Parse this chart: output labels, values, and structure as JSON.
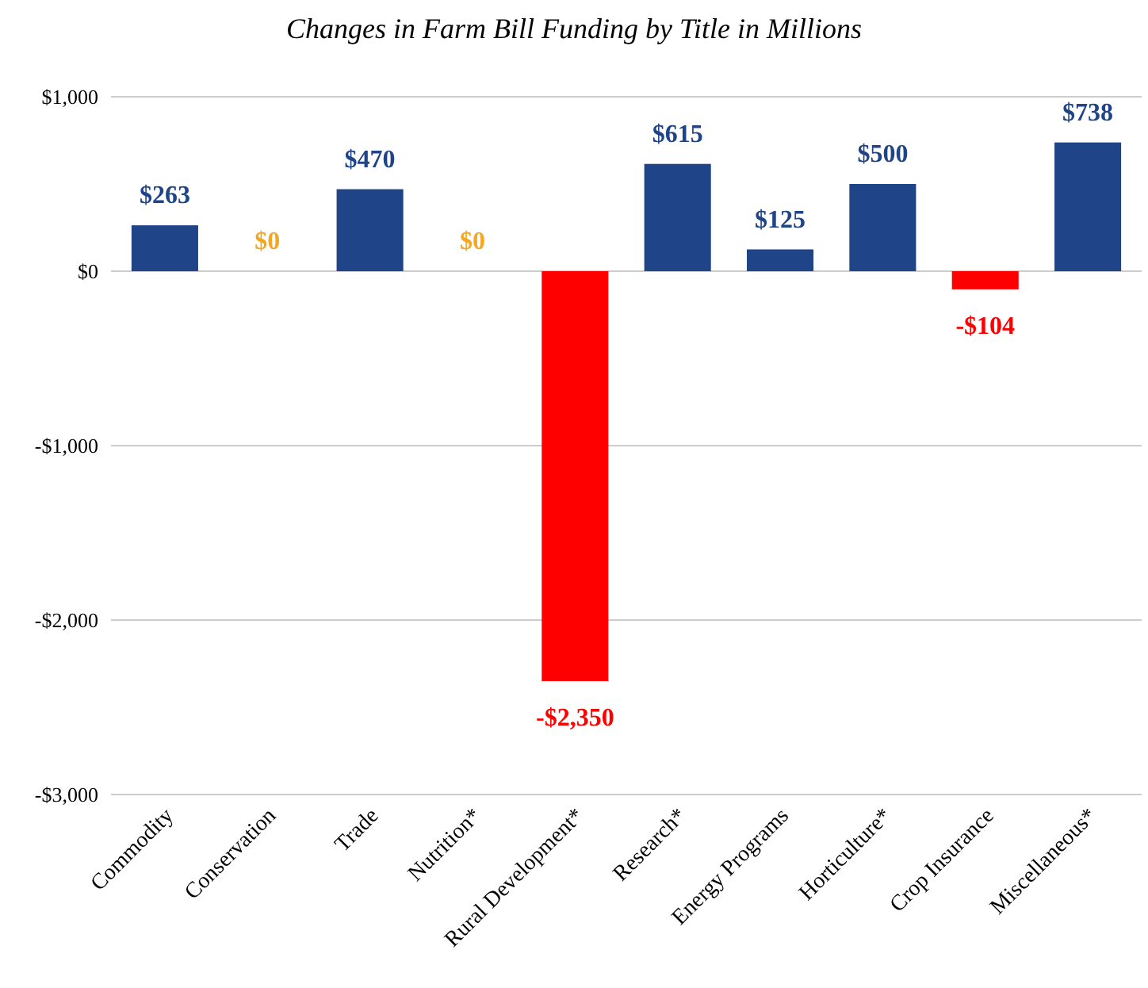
{
  "chart_data": {
    "type": "bar",
    "title": "Changes in Farm Bill Funding by Title in Millions",
    "categories": [
      "Commodity",
      "Conservation",
      "Trade",
      "Nutrition*",
      "Rural Development*",
      "Research*",
      "Energy Programs",
      "Horticulture*",
      "Crop Insurance",
      "Miscellaneous*"
    ],
    "values": [
      263,
      0,
      470,
      0,
      -2350,
      615,
      125,
      500,
      -104,
      738
    ],
    "colors": [
      "#1f4488",
      "#f5a623",
      "#1f4488",
      "#f5a623",
      "#ff0000",
      "#1f4488",
      "#1f4488",
      "#1f4488",
      "#ff0000",
      "#1f4488"
    ],
    "value_labels": [
      "$263",
      "$0",
      "$470",
      "$0",
      "-$2,350",
      "$615",
      "$125",
      "$500",
      "-$104",
      "$738"
    ],
    "ylim": [
      -3000,
      1000
    ],
    "yticks": [
      {
        "value": -3000,
        "label": "-$3,000"
      },
      {
        "value": -2000,
        "label": "-$2,000"
      },
      {
        "value": -1000,
        "label": "-$1,000"
      },
      {
        "value": 0,
        "label": "$0"
      },
      {
        "value": 1000,
        "label": "$1,000"
      }
    ],
    "grid": "y"
  }
}
